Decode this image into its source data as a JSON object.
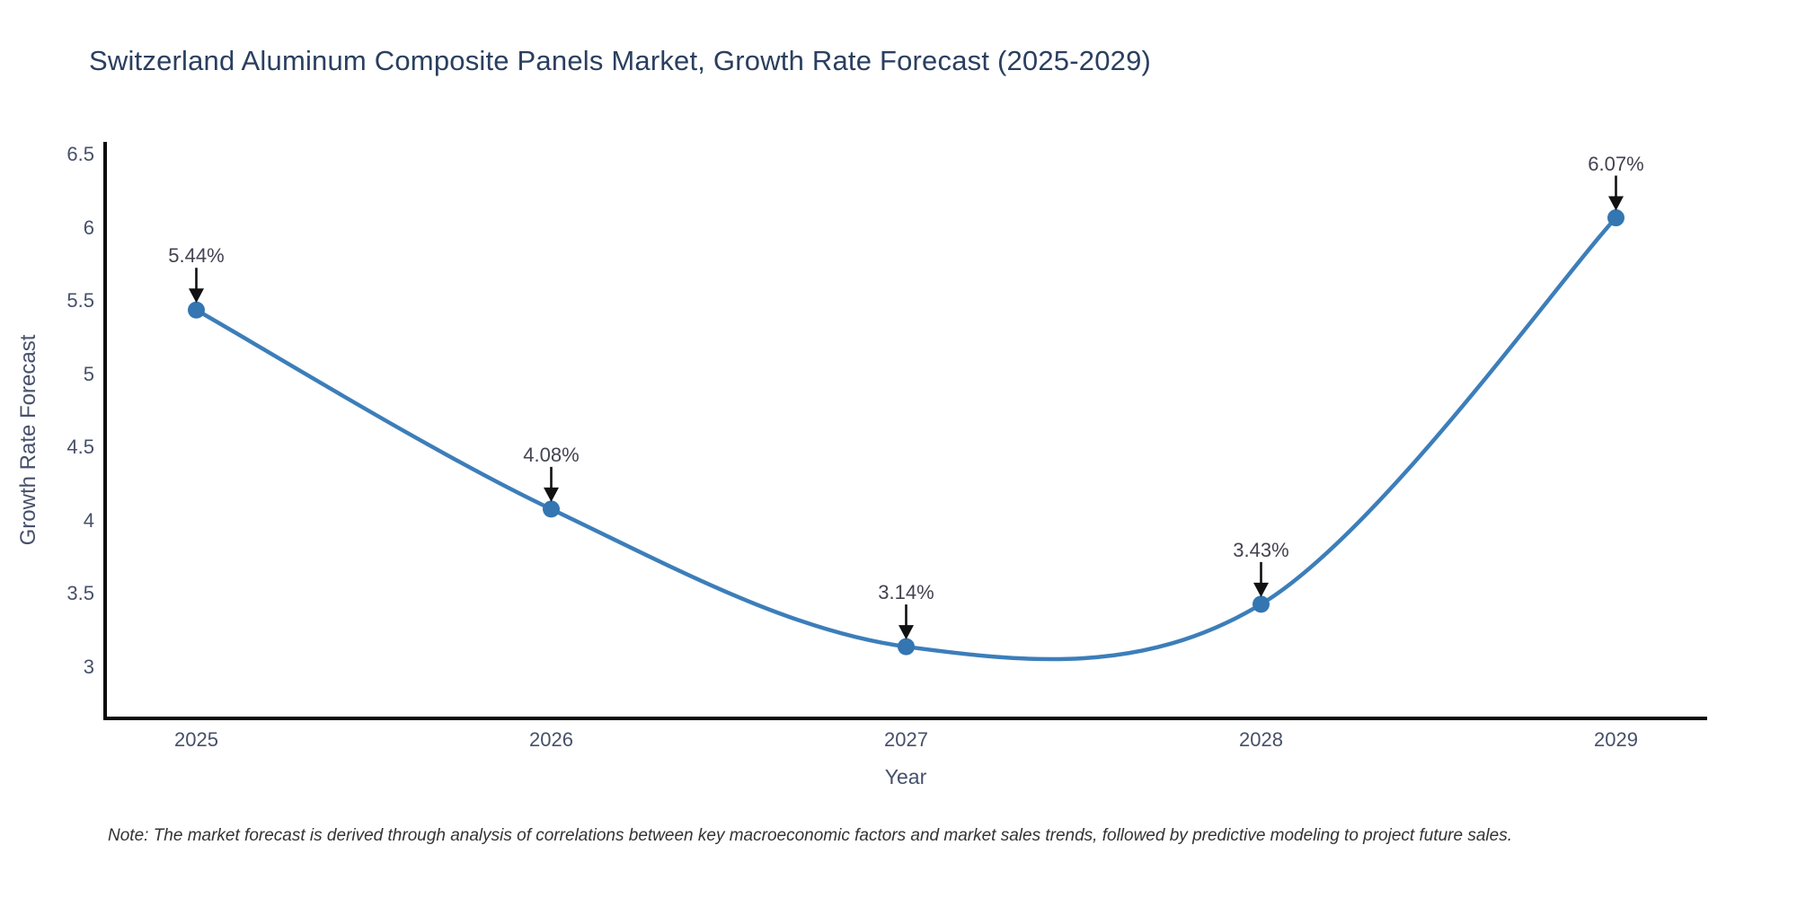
{
  "title": "Switzerland Aluminum Composite Panels Market, Growth Rate Forecast (2025-2029)",
  "note": "Note: The market forecast is derived through analysis of correlations between key macroeconomic factors and market sales trends, followed by predictive modeling to project future sales.",
  "chart_data": {
    "type": "line",
    "line_shape": "spline",
    "markers": true,
    "grid": false,
    "legend": "none",
    "title": "Switzerland Aluminum Composite Panels Market, Growth Rate Forecast (2025-2029)",
    "xlabel": "Year",
    "ylabel": "Growth Rate Forecast",
    "categories": [
      "2025",
      "2026",
      "2027",
      "2028",
      "2029"
    ],
    "values": [
      5.44,
      4.08,
      3.14,
      3.43,
      6.07
    ],
    "point_labels": [
      "5.44%",
      "4.08%",
      "3.14%",
      "3.43%",
      "6.07%"
    ],
    "yticks": [
      3,
      3.5,
      4,
      4.5,
      5,
      5.5,
      6,
      6.5
    ],
    "ytick_labels": [
      "3",
      "3.5",
      "4",
      "4.5",
      "5",
      "5.5",
      "6",
      "6.5"
    ],
    "ylim": [
      2.65,
      6.6
    ],
    "annotation_style": "black-down-arrow",
    "colors": {
      "line": "#3c7eba",
      "marker": "#3376b1",
      "arrow": "#111111",
      "axis": "#0a0a0a",
      "title": "#2a3f5f",
      "tick_label": "#46506a",
      "axis_label": "#46506a",
      "annotation": "#434352",
      "note": "#333333",
      "background": "#ffffff"
    }
  }
}
